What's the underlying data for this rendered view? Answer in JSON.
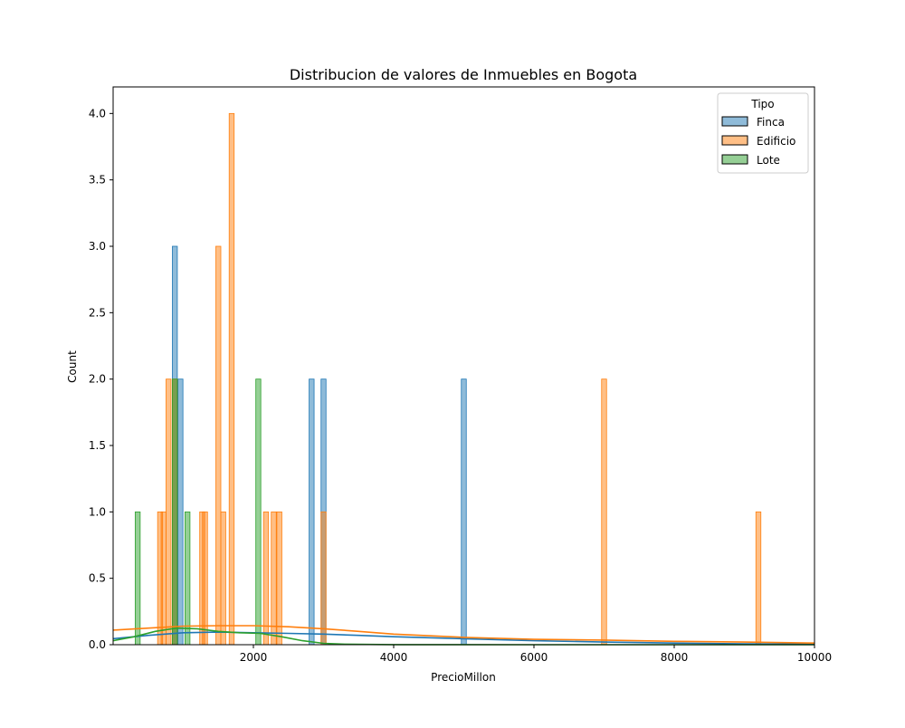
{
  "chart_data": {
    "type": "bar",
    "title": "Distribucion de valores de Inmuebles en Bogota",
    "xlabel": "PrecioMillon",
    "ylabel": "Count",
    "xlim": [
      0,
      10000
    ],
    "ylim": [
      0,
      4.2
    ],
    "x_ticks": [
      2000,
      4000,
      6000,
      8000,
      10000
    ],
    "y_ticks": [
      0.0,
      0.5,
      1.0,
      1.5,
      2.0,
      2.5,
      3.0,
      3.5,
      4.0
    ],
    "grid": false,
    "legend": {
      "title": "Tipo",
      "placement": "top-right"
    },
    "series": [
      {
        "name": "Finca",
        "color": "#1f77b4",
        "bars": [
          {
            "x": 880,
            "count": 3
          },
          {
            "x": 960,
            "count": 2
          },
          {
            "x": 2830,
            "count": 2
          },
          {
            "x": 3000,
            "count": 2
          },
          {
            "x": 5000,
            "count": 2
          }
        ],
        "kde": [
          [
            0,
            0.045
          ],
          [
            500,
            0.07
          ],
          [
            1000,
            0.09
          ],
          [
            1500,
            0.095
          ],
          [
            2000,
            0.09
          ],
          [
            2500,
            0.085
          ],
          [
            3000,
            0.08
          ],
          [
            3500,
            0.07
          ],
          [
            4000,
            0.06
          ],
          [
            5000,
            0.045
          ],
          [
            6000,
            0.03
          ],
          [
            7000,
            0.02
          ],
          [
            8000,
            0.012
          ],
          [
            9000,
            0.007
          ],
          [
            10000,
            0.004
          ]
        ]
      },
      {
        "name": "Edificio",
        "color": "#ff7f0e",
        "bars": [
          {
            "x": 670,
            "count": 1
          },
          {
            "x": 720,
            "count": 1
          },
          {
            "x": 790,
            "count": 2
          },
          {
            "x": 880,
            "count": 2
          },
          {
            "x": 1270,
            "count": 1
          },
          {
            "x": 1310,
            "count": 1
          },
          {
            "x": 1500,
            "count": 3
          },
          {
            "x": 1570,
            "count": 1
          },
          {
            "x": 1690,
            "count": 4
          },
          {
            "x": 2180,
            "count": 1
          },
          {
            "x": 2290,
            "count": 1
          },
          {
            "x": 2370,
            "count": 1
          },
          {
            "x": 3000,
            "count": 1
          },
          {
            "x": 7000,
            "count": 2
          },
          {
            "x": 9200,
            "count": 1
          }
        ],
        "kde": [
          [
            0,
            0.11
          ],
          [
            500,
            0.125
          ],
          [
            1000,
            0.14
          ],
          [
            1500,
            0.143
          ],
          [
            2000,
            0.143
          ],
          [
            2500,
            0.135
          ],
          [
            3000,
            0.12
          ],
          [
            3500,
            0.1
          ],
          [
            4000,
            0.08
          ],
          [
            5000,
            0.055
          ],
          [
            6000,
            0.04
          ],
          [
            7000,
            0.035
          ],
          [
            8000,
            0.025
          ],
          [
            9000,
            0.02
          ],
          [
            10000,
            0.012
          ]
        ]
      },
      {
        "name": "Lote",
        "color": "#2ca02c",
        "bars": [
          {
            "x": 350,
            "count": 1
          },
          {
            "x": 880,
            "count": 2
          },
          {
            "x": 1060,
            "count": 1
          },
          {
            "x": 2070,
            "count": 2
          }
        ],
        "kde": [
          [
            0,
            0.03
          ],
          [
            300,
            0.06
          ],
          [
            600,
            0.1
          ],
          [
            900,
            0.125
          ],
          [
            1200,
            0.12
          ],
          [
            1500,
            0.1
          ],
          [
            1800,
            0.09
          ],
          [
            2100,
            0.085
          ],
          [
            2400,
            0.06
          ],
          [
            2700,
            0.03
          ],
          [
            3000,
            0.01
          ],
          [
            3300,
            0.004
          ],
          [
            4000,
            0.001
          ],
          [
            6000,
            0.0
          ],
          [
            10000,
            0.0
          ]
        ]
      }
    ]
  }
}
